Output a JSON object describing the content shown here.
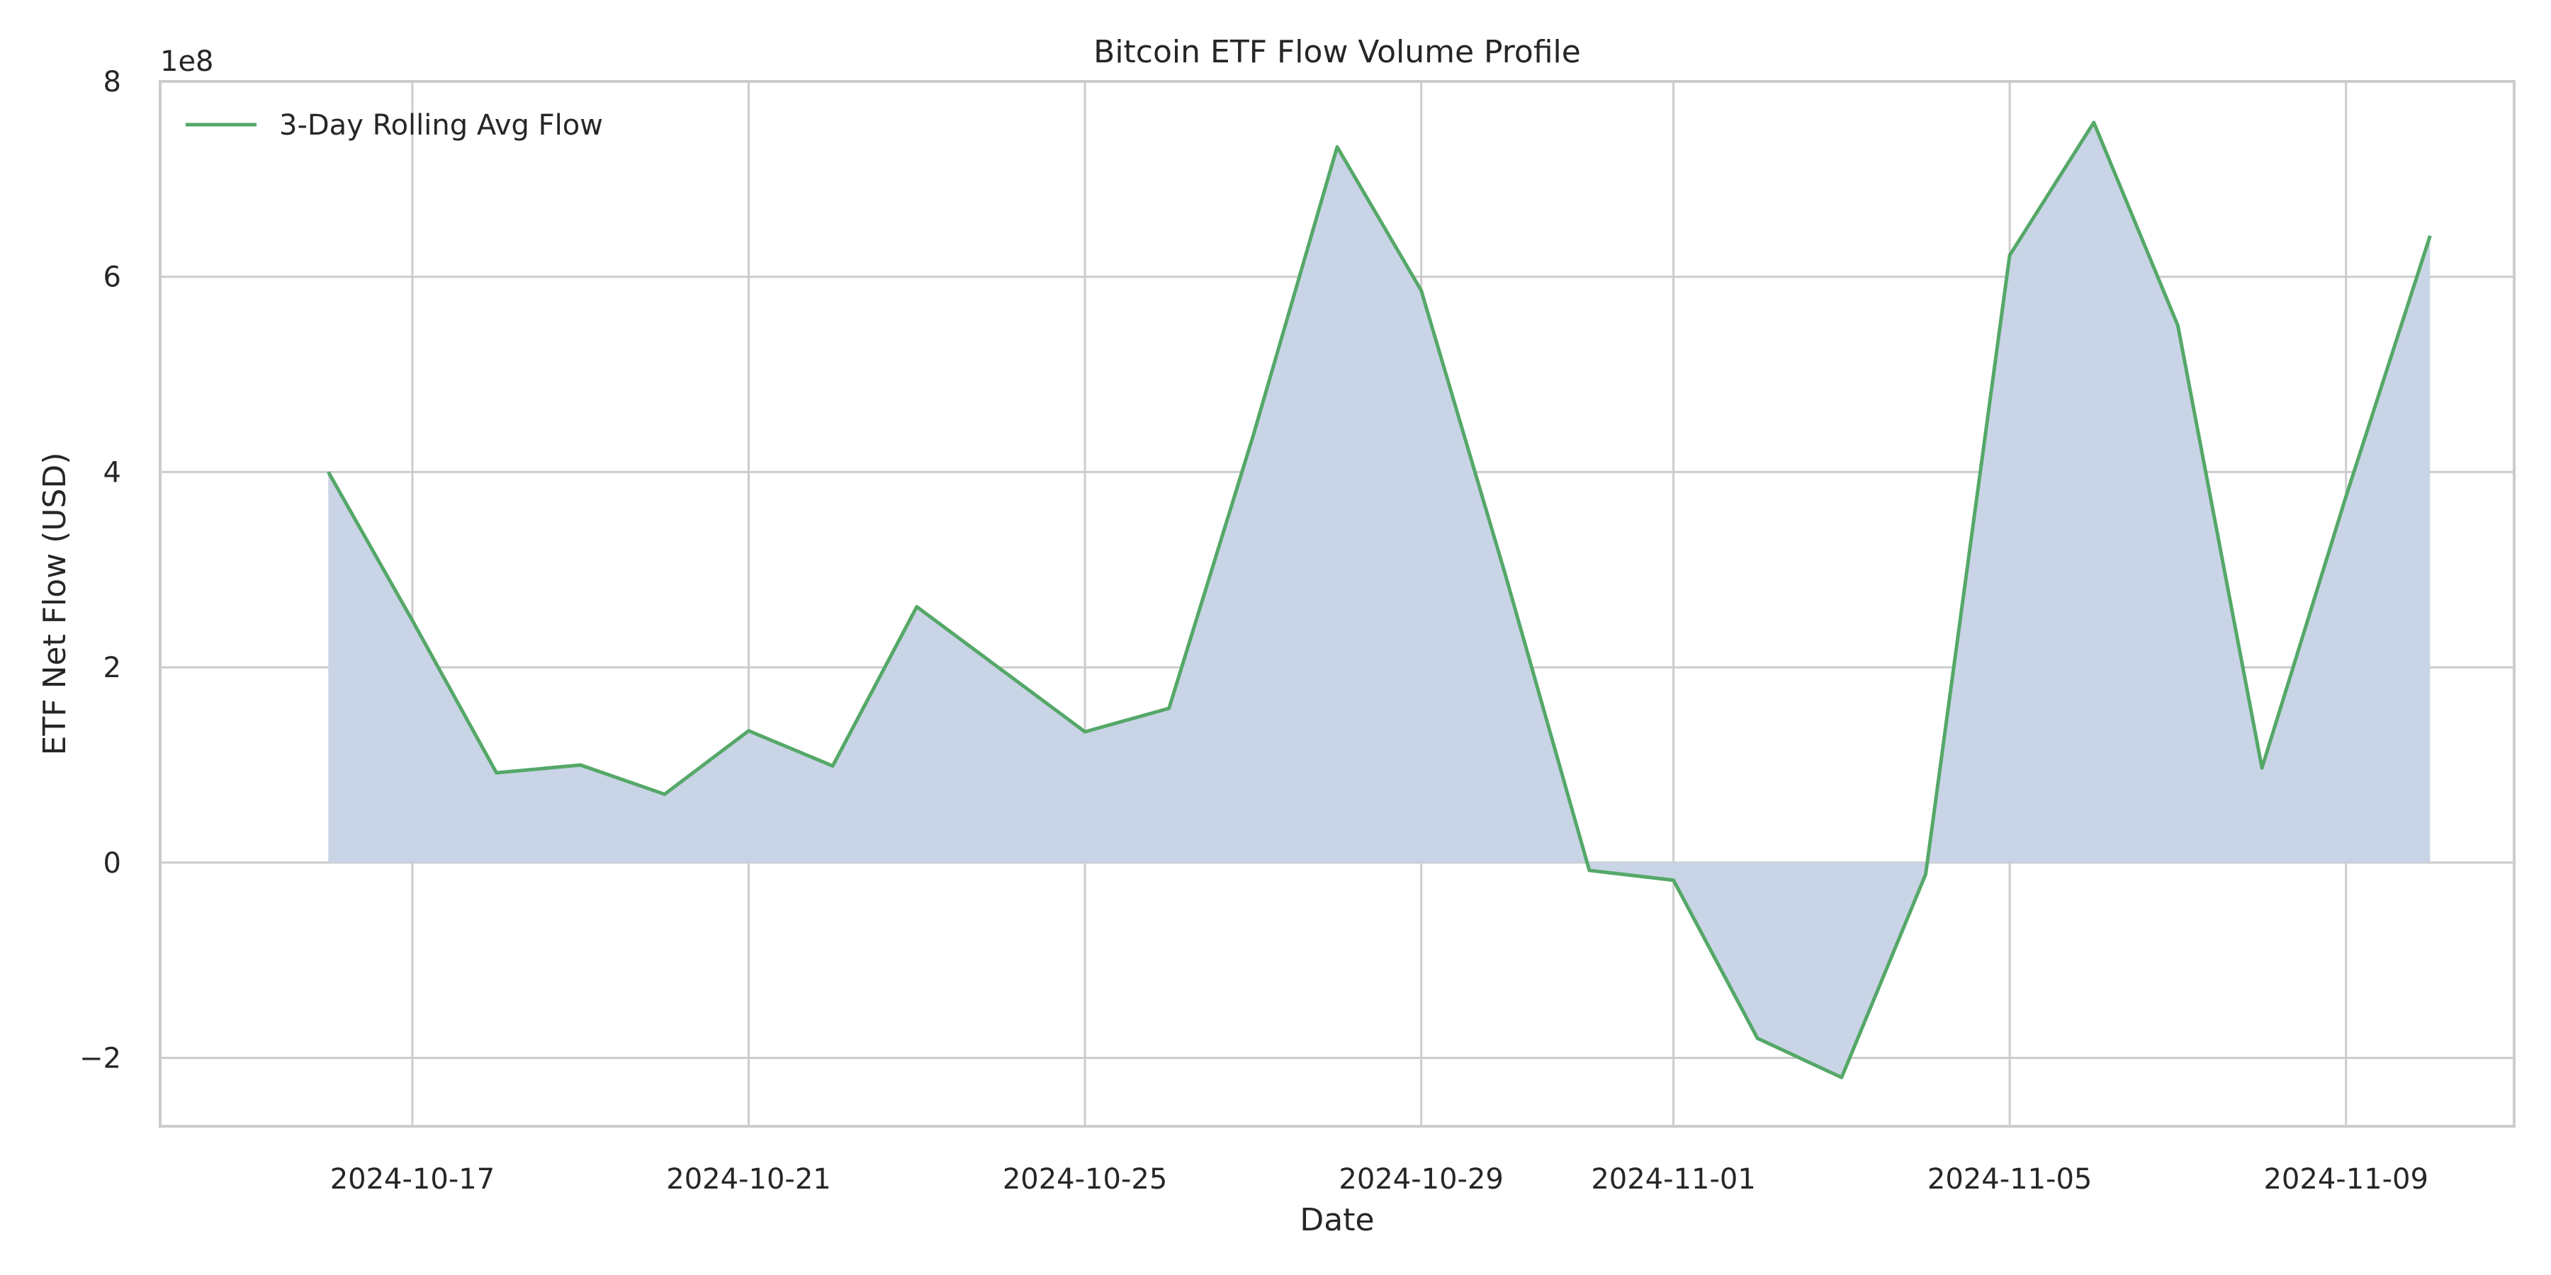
{
  "chart_data": {
    "type": "area",
    "title": "Bitcoin ETF Flow Volume Profile",
    "xlabel": "Date",
    "ylabel": "ETF Net Flow (USD)",
    "y_scale_label": "1e8",
    "x_ticks": [
      "2024-10-17",
      "2024-10-21",
      "2024-10-25",
      "2024-10-29",
      "2024-11-01",
      "2024-11-05",
      "2024-11-09"
    ],
    "y_ticks": [
      -2,
      0,
      2,
      4,
      6,
      8
    ],
    "xlim": [
      "2024-10-14",
      "2024-11-11"
    ],
    "ylim": [
      -2.7,
      8
    ],
    "grid": true,
    "legend_position": "top-left",
    "colors": {
      "line": "#55a868",
      "fill": "#c9d4e6",
      "grid": "#cccccc",
      "spine": "#cccccc"
    },
    "series": [
      {
        "name": "3-Day Rolling Avg Flow",
        "x": [
          "2024-10-16",
          "2024-10-17",
          "2024-10-18",
          "2024-10-19",
          "2024-10-20",
          "2024-10-21",
          "2024-10-22",
          "2024-10-23",
          "2024-10-24",
          "2024-10-25",
          "2024-10-26",
          "2024-10-27",
          "2024-10-28",
          "2024-10-29",
          "2024-10-30",
          "2024-10-31",
          "2024-11-01",
          "2024-11-02",
          "2024-11-03",
          "2024-11-04",
          "2024-11-05",
          "2024-11-06",
          "2024-11-07",
          "2024-11-08",
          "2024-11-09",
          "2024-11-10"
        ],
        "values": [
          4.0,
          2.48,
          0.92,
          1.0,
          0.7,
          1.35,
          0.99,
          2.62,
          1.98,
          1.34,
          1.58,
          4.37,
          7.33,
          5.86,
          2.95,
          -0.08,
          -0.18,
          -1.8,
          -2.2,
          -0.12,
          6.22,
          7.58,
          5.5,
          0.97,
          3.75,
          6.42
        ]
      }
    ]
  }
}
